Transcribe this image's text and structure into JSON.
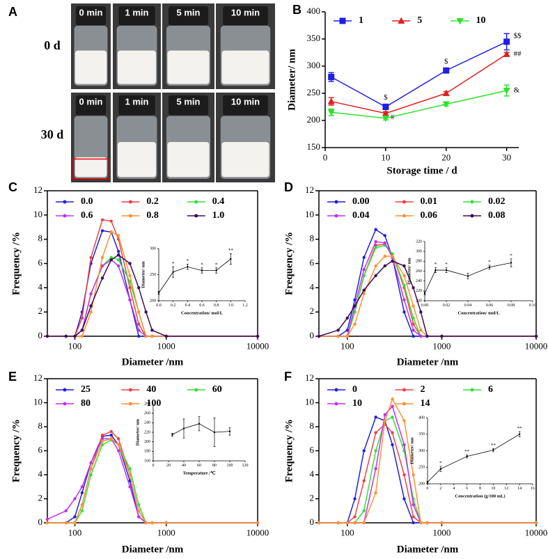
{
  "panel_a": {
    "label": "A",
    "rows": [
      {
        "label": "0 d",
        "times": [
          "0 min",
          "1 min",
          "5 min",
          "10 min"
        ]
      },
      {
        "label": "30 d",
        "times": [
          "0 min",
          "1 min",
          "5 min",
          "10 min"
        ]
      }
    ]
  },
  "chart_data": [
    {
      "type": "line",
      "panel_label": "B",
      "xlabel": "Storage time / d",
      "ylabel": "Diameter/ nm",
      "x": [
        1,
        10,
        20,
        30
      ],
      "xlim": [
        0,
        32
      ],
      "xticks": [
        0,
        10,
        20,
        30
      ],
      "ylim": [
        150,
        400
      ],
      "yticks": [
        150,
        200,
        250,
        300,
        350,
        400
      ],
      "series": [
        {
          "name": "1",
          "color": "#1f1fe0",
          "marker": "square",
          "values": [
            280,
            225,
            292,
            345
          ],
          "errors": [
            8,
            5,
            4,
            15
          ],
          "annotations": [
            null,
            "$",
            "$",
            "$$"
          ]
        },
        {
          "name": "5",
          "color": "#e01f1f",
          "marker": "triangle",
          "values": [
            235,
            213,
            250,
            322
          ],
          "errors": [
            7,
            3,
            3,
            3
          ],
          "annotations": [
            null,
            "#",
            null,
            "##"
          ]
        },
        {
          "name": "10",
          "color": "#2ee02e",
          "marker": "triangle-down",
          "values": [
            215,
            204,
            230,
            255
          ],
          "errors": [
            6,
            3,
            3,
            10
          ],
          "annotations": [
            null,
            null,
            null,
            "&"
          ]
        }
      ]
    },
    {
      "type": "line",
      "panel_label": "C",
      "xlabel": "Diameter /nm",
      "ylabel": "Frequency /%",
      "xscale": "log",
      "x": [
        50,
        80,
        100,
        120,
        150,
        200,
        250,
        300,
        400,
        500,
        600,
        700,
        1000,
        10000
      ],
      "xlim": [
        50,
        10000
      ],
      "xticks": [
        100,
        1000,
        10000
      ],
      "ylim": [
        0,
        12
      ],
      "yticks": [
        0,
        2,
        4,
        6,
        8,
        10,
        12
      ],
      "series": [
        {
          "name": "0.0",
          "color": "#1f1fe0",
          "values": [
            0,
            0,
            0,
            2,
            6,
            8.7,
            8.6,
            7,
            3,
            0,
            0,
            0,
            0,
            0
          ]
        },
        {
          "name": "0.2",
          "color": "#f04040",
          "values": [
            0,
            0,
            0,
            1.5,
            6.5,
            9.6,
            9.5,
            8,
            4,
            1,
            0,
            0,
            0,
            0
          ]
        },
        {
          "name": "0.4",
          "color": "#33e033",
          "values": [
            0,
            0,
            0,
            0.5,
            3.5,
            5.8,
            6.5,
            6.3,
            4.5,
            2,
            0,
            0,
            0,
            0
          ]
        },
        {
          "name": "0.6",
          "color": "#c030f0",
          "values": [
            0,
            0,
            0,
            0.5,
            3.5,
            5.8,
            6.3,
            5.8,
            3,
            0.5,
            0,
            0,
            0,
            0
          ]
        },
        {
          "name": "0.8",
          "color": "#ff9030",
          "values": [
            0,
            0,
            0,
            0,
            2,
            6.5,
            8.6,
            8.3,
            5,
            2,
            0,
            0,
            0,
            0
          ]
        },
        {
          "name": "1.0",
          "color": "#3a0a5a",
          "values": [
            0,
            0,
            0,
            0.5,
            2.5,
            4.8,
            6.3,
            6.7,
            6,
            4,
            2,
            0.5,
            0,
            0
          ]
        }
      ],
      "inset": {
        "xlabel": "Concentration/ mol/L",
        "ylabel": "Diameter/ nm",
        "x": [
          0,
          0.2,
          0.4,
          0.6,
          0.8,
          1.0
        ],
        "xlim": [
          0,
          1.2
        ],
        "xticks": [
          {
            "value": 0,
            "label": "0.0"
          },
          0.2,
          0.4,
          0.6,
          0.8,
          {
            "value": 1,
            "label": "1.0"
          },
          1.2
        ],
        "ylim": [
          200,
          300
        ],
        "yticks": [
          200,
          250,
          300
        ],
        "series": [
          {
            "color": "#000000",
            "values": [
              215,
              255,
              265,
              258,
              258,
              280
            ],
            "errors": [
              3,
              10,
              5,
              5,
              5,
              10
            ],
            "annotations": [
              null,
              "*",
              "*",
              "*",
              "*",
              "**"
            ]
          }
        ]
      }
    },
    {
      "type": "line",
      "panel_label": "D",
      "xlabel": "Diameter /nm",
      "ylabel": "Frequency /%",
      "xscale": "log",
      "x": [
        50,
        80,
        100,
        120,
        150,
        200,
        250,
        300,
        400,
        500,
        600,
        700,
        1000,
        10000
      ],
      "xlim": [
        50,
        10000
      ],
      "xticks": [
        100,
        1000,
        10000
      ],
      "ylim": [
        0,
        12
      ],
      "yticks": [
        0,
        2,
        4,
        6,
        8,
        10,
        12
      ],
      "series": [
        {
          "name": "0.00",
          "color": "#1f1fe0",
          "values": [
            0,
            0,
            0.5,
            3,
            6.5,
            8.8,
            8.3,
            6.5,
            2,
            0,
            0,
            0,
            0,
            0
          ]
        },
        {
          "name": "0.01",
          "color": "#f04040",
          "values": [
            0,
            0,
            0,
            2,
            5,
            7.5,
            7.6,
            6.8,
            4,
            1,
            0,
            0,
            0,
            0
          ]
        },
        {
          "name": "0.02",
          "color": "#33e033",
          "values": [
            0,
            0,
            0,
            2,
            5,
            7.3,
            7.5,
            6.8,
            4.2,
            1.5,
            0,
            0,
            0,
            0
          ]
        },
        {
          "name": "0.04",
          "color": "#c030f0",
          "values": [
            0,
            0,
            0,
            2.5,
            5.5,
            7.8,
            7.7,
            6.5,
            3,
            0.5,
            0,
            0,
            0,
            0
          ]
        },
        {
          "name": "0.06",
          "color": "#ff9030",
          "values": [
            0,
            0,
            0,
            1,
            3.5,
            5.8,
            6.6,
            6.6,
            5,
            2.5,
            0.5,
            0,
            0,
            0
          ]
        },
        {
          "name": "0.08",
          "color": "#3a0a5a",
          "values": [
            0,
            0.5,
            1.5,
            2.5,
            3.8,
            5,
            5.8,
            6.2,
            5.8,
            4,
            2,
            0,
            0,
            0
          ]
        }
      ],
      "inset": {
        "xlabel": "Concentration/ mol/L",
        "ylabel": "Diameter/ nm",
        "x": [
          0,
          0.01,
          0.02,
          0.04,
          0.06,
          0.08
        ],
        "xlim": [
          0,
          0.1
        ],
        "xticks": [
          {
            "value": 0,
            "label": "0.00"
          },
          0.02,
          0.04,
          0.06,
          0.08,
          {
            "value": 0.1,
            "label": "0.10"
          }
        ],
        "ylim": [
          200,
          320
        ],
        "yticks": [
          200,
          220,
          240,
          260,
          280,
          300,
          320
        ],
        "series": [
          {
            "color": "#000000",
            "values": [
              215,
              262,
              262,
              250,
              268,
              277
            ],
            "errors": [
              3,
              5,
              5,
              6,
              4,
              8
            ],
            "annotations": [
              null,
              "*",
              "*",
              null,
              "*",
              "*"
            ]
          }
        ]
      }
    },
    {
      "type": "line",
      "panel_label": "E",
      "xlabel": "Diameter /nm",
      "ylabel": "Frequency /%",
      "xscale": "log",
      "x": [
        50,
        80,
        100,
        120,
        150,
        200,
        250,
        300,
        400,
        500,
        600,
        700,
        1000,
        10000
      ],
      "xlim": [
        50,
        10000
      ],
      "xticks": [
        100,
        1000,
        10000
      ],
      "ylim": [
        0,
        12
      ],
      "yticks": [
        0,
        2,
        4,
        6,
        8,
        10,
        12
      ],
      "series": [
        {
          "name": "25",
          "color": "#1f1fe0",
          "values": [
            0,
            0,
            0.5,
            2.5,
            5,
            7.2,
            7.3,
            6.5,
            3.5,
            0.5,
            0,
            0,
            0,
            0
          ]
        },
        {
          "name": "40",
          "color": "#f04040",
          "values": [
            0,
            0,
            0,
            1.5,
            4.5,
            7.3,
            7.6,
            7,
            4,
            1,
            0,
            0,
            0,
            0
          ]
        },
        {
          "name": "60",
          "color": "#33e033",
          "values": [
            0,
            0,
            0,
            1,
            4,
            6.5,
            6.9,
            6.5,
            4.5,
            1.5,
            0,
            0,
            0,
            0
          ]
        },
        {
          "name": "80",
          "color": "#c030f0",
          "values": [
            0.3,
            1,
            2,
            3,
            5,
            7,
            7,
            6,
            3,
            0.5,
            0,
            0,
            0,
            0
          ]
        },
        {
          "name": "100",
          "color": "#ff9030",
          "values": [
            0,
            0,
            0,
            1.5,
            4.5,
            6.8,
            7,
            6.5,
            4,
            1,
            0,
            0,
            0,
            0
          ]
        }
      ],
      "inset": {
        "xlabel": "Temperature /℃",
        "ylabel": "Diameter/ nm",
        "x": [
          25,
          40,
          60,
          80,
          100
        ],
        "xlim": [
          0,
          120
        ],
        "xticks": [
          0,
          20,
          40,
          60,
          80,
          100,
          120
        ],
        "ylim": [
          160,
          280
        ],
        "yticks": [
          160,
          180,
          200,
          220,
          240,
          260,
          280
        ],
        "series": [
          {
            "color": "#000000",
            "values": [
              215,
              228,
              238,
              220,
              222
            ],
            "errors": [
              3,
              20,
              15,
              30,
              8
            ]
          }
        ]
      }
    },
    {
      "type": "line",
      "panel_label": "F",
      "xlabel": "Diameter /nm",
      "ylabel": "Frequency /%",
      "xscale": "log",
      "x": [
        50,
        80,
        100,
        120,
        150,
        200,
        250,
        300,
        400,
        500,
        600,
        700,
        1000,
        10000
      ],
      "xlim": [
        50,
        10000
      ],
      "xticks": [
        100,
        1000,
        10000
      ],
      "ylim": [
        0,
        12
      ],
      "yticks": [
        0,
        2,
        4,
        6,
        8,
        10,
        12
      ],
      "series": [
        {
          "name": "0",
          "color": "#1f1fe0",
          "values": [
            0,
            0,
            0,
            2,
            6,
            8.8,
            8.5,
            6.5,
            2,
            0,
            0,
            0,
            0,
            0
          ]
        },
        {
          "name": "2",
          "color": "#f04040",
          "values": [
            0,
            0,
            0,
            0.5,
            3.5,
            7.5,
            8.2,
            7.5,
            4,
            0.5,
            0,
            0,
            0,
            0
          ]
        },
        {
          "name": "6",
          "color": "#33e033",
          "values": [
            0,
            0,
            0,
            0,
            1,
            6,
            8.5,
            8.8,
            6,
            2,
            0,
            0,
            0,
            0
          ]
        },
        {
          "name": "10",
          "color": "#c030f0",
          "values": [
            0,
            0,
            0,
            0,
            0,
            4.5,
            9,
            9.7,
            6.5,
            1.5,
            0,
            0,
            0,
            0
          ]
        },
        {
          "name": "14",
          "color": "#ff9030",
          "values": [
            0,
            0,
            0,
            0,
            0,
            2.5,
            8.5,
            10.3,
            8.5,
            4,
            0,
            0,
            0,
            0
          ]
        }
      ],
      "inset": {
        "xlabel": "Concentration (g/100 mL)",
        "ylabel": "Diameter/ nm",
        "x": [
          0,
          2,
          6,
          10,
          14
        ],
        "xlim": [
          0,
          16
        ],
        "xticks": [
          0,
          2,
          4,
          6,
          8,
          10,
          12,
          14,
          16
        ],
        "ylim": [
          200,
          400
        ],
        "yticks": [
          200,
          250,
          300,
          350,
          400
        ],
        "series": [
          {
            "color": "#000000",
            "values": [
              205,
              245,
              283,
              302,
              350
            ],
            "errors": [
              3,
              8,
              5,
              5,
              8
            ],
            "annotations": [
              null,
              "*",
              "**",
              "**",
              "**"
            ]
          }
        ]
      }
    }
  ]
}
